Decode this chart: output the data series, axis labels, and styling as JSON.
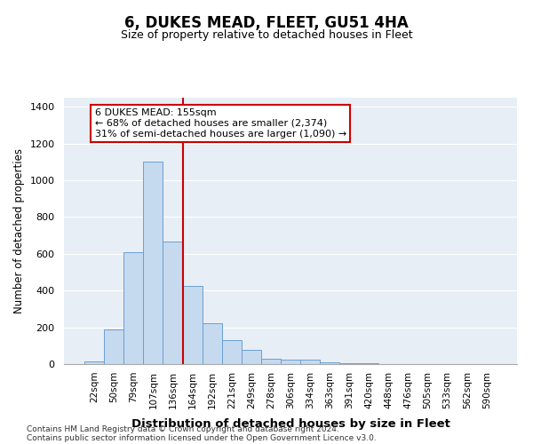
{
  "title": "6, DUKES MEAD, FLEET, GU51 4HA",
  "subtitle": "Size of property relative to detached houses in Fleet",
  "xlabel": "Distribution of detached houses by size in Fleet",
  "ylabel": "Number of detached properties",
  "categories": [
    "22sqm",
    "50sqm",
    "79sqm",
    "107sqm",
    "136sqm",
    "164sqm",
    "192sqm",
    "221sqm",
    "249sqm",
    "278sqm",
    "306sqm",
    "334sqm",
    "363sqm",
    "391sqm",
    "420sqm",
    "448sqm",
    "476sqm",
    "505sqm",
    "533sqm",
    "562sqm",
    "590sqm"
  ],
  "values": [
    15,
    190,
    610,
    1100,
    665,
    425,
    220,
    130,
    75,
    30,
    22,
    22,
    10,
    5,
    3,
    2,
    0,
    0,
    0,
    0,
    0
  ],
  "bar_color": "#c5d9ef",
  "bar_edge_color": "#6b9fd4",
  "red_line_x": 4.5,
  "annotation_line1": "6 DUKES MEAD: 155sqm",
  "annotation_line2": "← 68% of detached houses are smaller (2,374)",
  "annotation_line3": "31% of semi-detached houses are larger (1,090) →",
  "annotation_box_facecolor": "#ffffff",
  "annotation_box_edgecolor": "#cc0000",
  "red_line_color": "#cc0000",
  "ylim": [
    0,
    1450
  ],
  "yticks": [
    0,
    200,
    400,
    600,
    800,
    1000,
    1200,
    1400
  ],
  "bg_color": "#e8eef5",
  "footer_line1": "Contains HM Land Registry data © Crown copyright and database right 2024.",
  "footer_line2": "Contains public sector information licensed under the Open Government Licence v3.0."
}
